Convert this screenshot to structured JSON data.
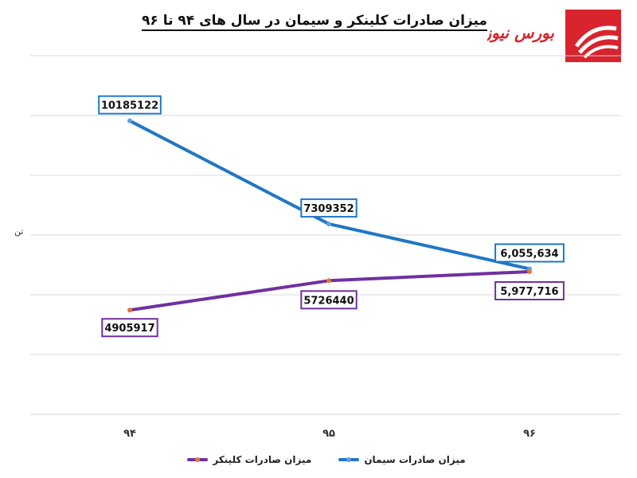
{
  "title": "میزان صادرات کلینکر و سیمان در سال های ۹۴ تا ۹۶",
  "logo": {
    "text": "بورس نیوز",
    "color": "#d9232d"
  },
  "chart_data": {
    "type": "line",
    "title": "میزان صادرات کلینکر و سیمان در سال های ۹۴ تا ۹۶",
    "xlabel": "",
    "ylabel": "تن",
    "categories": [
      "۹۴",
      "۹۵",
      "۹۶"
    ],
    "ylim": [
      2000000,
      12000000
    ],
    "grid": true,
    "legend_position": "bottom",
    "series": [
      {
        "name": "میزان صادرات سیمان",
        "values": [
          10185122,
          7309352,
          6055634
        ],
        "labels": [
          "10185122",
          "7309352",
          "6,055,634"
        ],
        "color": "#1f77c4",
        "label_position": "above"
      },
      {
        "name": "میزان صادرات کلینکر",
        "values": [
          4905917,
          5726440,
          5977716
        ],
        "labels": [
          "4905917",
          "5726440",
          "5,977,716"
        ],
        "color": "#7030a0",
        "label_position": "below"
      }
    ]
  }
}
